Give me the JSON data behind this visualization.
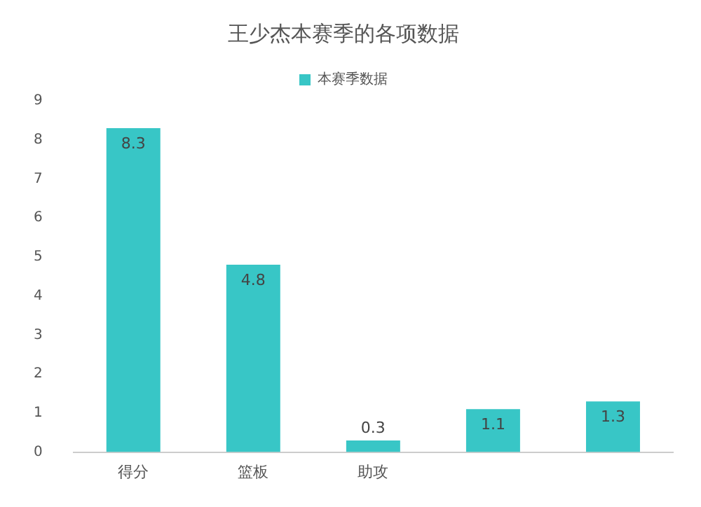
{
  "chart_data": {
    "type": "bar",
    "title": "王少杰本赛季的各项数据",
    "categories": [
      "得分",
      "篮板",
      "助攻",
      null,
      null
    ],
    "series": [
      {
        "name": "本赛季数据",
        "color": "#38c6c6",
        "values": [
          8.3,
          4.8,
          0.3,
          1.1,
          1.3
        ]
      }
    ],
    "ylim": [
      0,
      9
    ],
    "yticks": [
      0,
      1,
      2,
      3,
      4,
      5,
      6,
      7,
      8,
      9
    ],
    "grid": false,
    "legend": "top",
    "data_labels": true
  }
}
